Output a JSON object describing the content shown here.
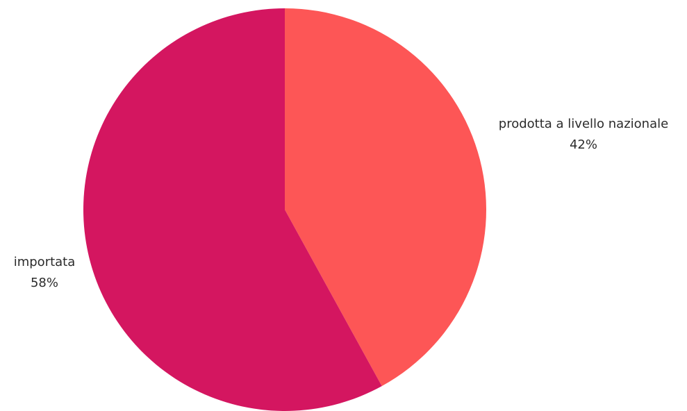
{
  "chart_data": {
    "type": "pie",
    "title": "",
    "start_angle_deg": 0,
    "direction": "clockwise",
    "slices": [
      {
        "label": "prodotta a livello nazionale",
        "value": 42,
        "value_label": "42%",
        "color": "#fd5656"
      },
      {
        "label": "importata",
        "value": 58,
        "value_label": "58%",
        "color": "#d41660"
      }
    ]
  }
}
